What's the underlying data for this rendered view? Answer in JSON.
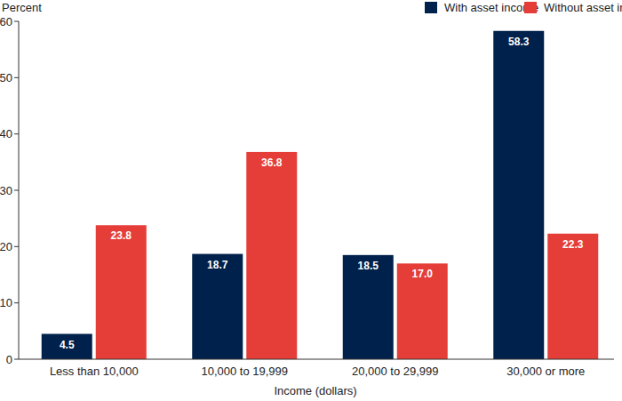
{
  "chart_data": {
    "type": "bar",
    "y_label": "Percent",
    "x_label": "Income (dollars)",
    "categories": [
      "Less than 10,000",
      "10,000 to 19,999",
      "20,000 to 29,999",
      "30,000 or more"
    ],
    "series": [
      {
        "name": "With asset income",
        "color": "#00214b",
        "values": [
          4.5,
          18.7,
          18.5,
          58.3
        ],
        "value_labels": [
          "4.5",
          "18.7",
          "18.5",
          "58.3"
        ]
      },
      {
        "name": "Without asset income",
        "color": "#e53e39",
        "values": [
          23.8,
          36.8,
          17.0,
          22.3
        ],
        "value_labels": [
          "23.8",
          "36.8",
          "17.0",
          "22.3"
        ]
      }
    ],
    "ylim": [
      0,
      60
    ],
    "yticks": [
      0,
      10,
      20,
      30,
      40,
      50,
      60
    ],
    "grid": false,
    "legend": "top-right",
    "data_labels": true
  }
}
